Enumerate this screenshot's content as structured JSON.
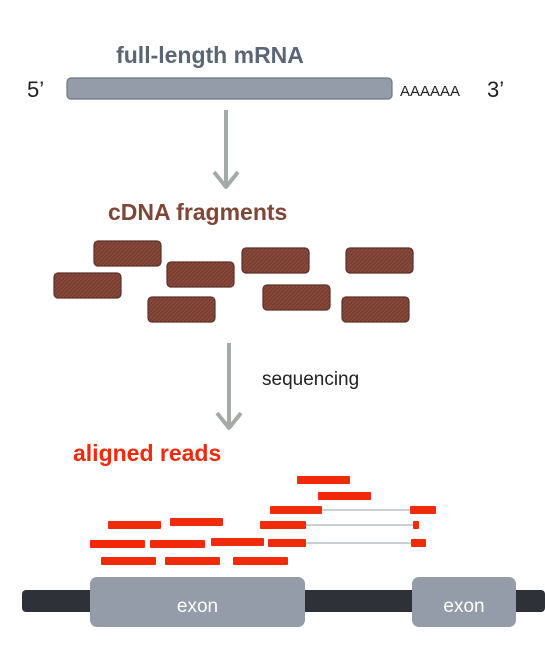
{
  "mrna": {
    "title": "full-length mRNA",
    "five_prime": "5’",
    "poly_a": "AAAAAA",
    "three_prime": "3’"
  },
  "cdna": {
    "title": "cDNA fragments"
  },
  "sequencing_step": {
    "label": "sequencing"
  },
  "reads": {
    "title": "aligned reads"
  },
  "genome": {
    "exons": [
      {
        "label": "exon"
      },
      {
        "label": "exon"
      }
    ]
  },
  "colors": {
    "mrna_bar": "#939ca8",
    "mrna_title": "#5a6575",
    "arrow": "#a4aba7",
    "fragment": "#7a3f33",
    "fragment_title": "#7f4638",
    "read": "#f02a0a",
    "genome_line": "#2f3138",
    "exon": "#939ca8"
  }
}
